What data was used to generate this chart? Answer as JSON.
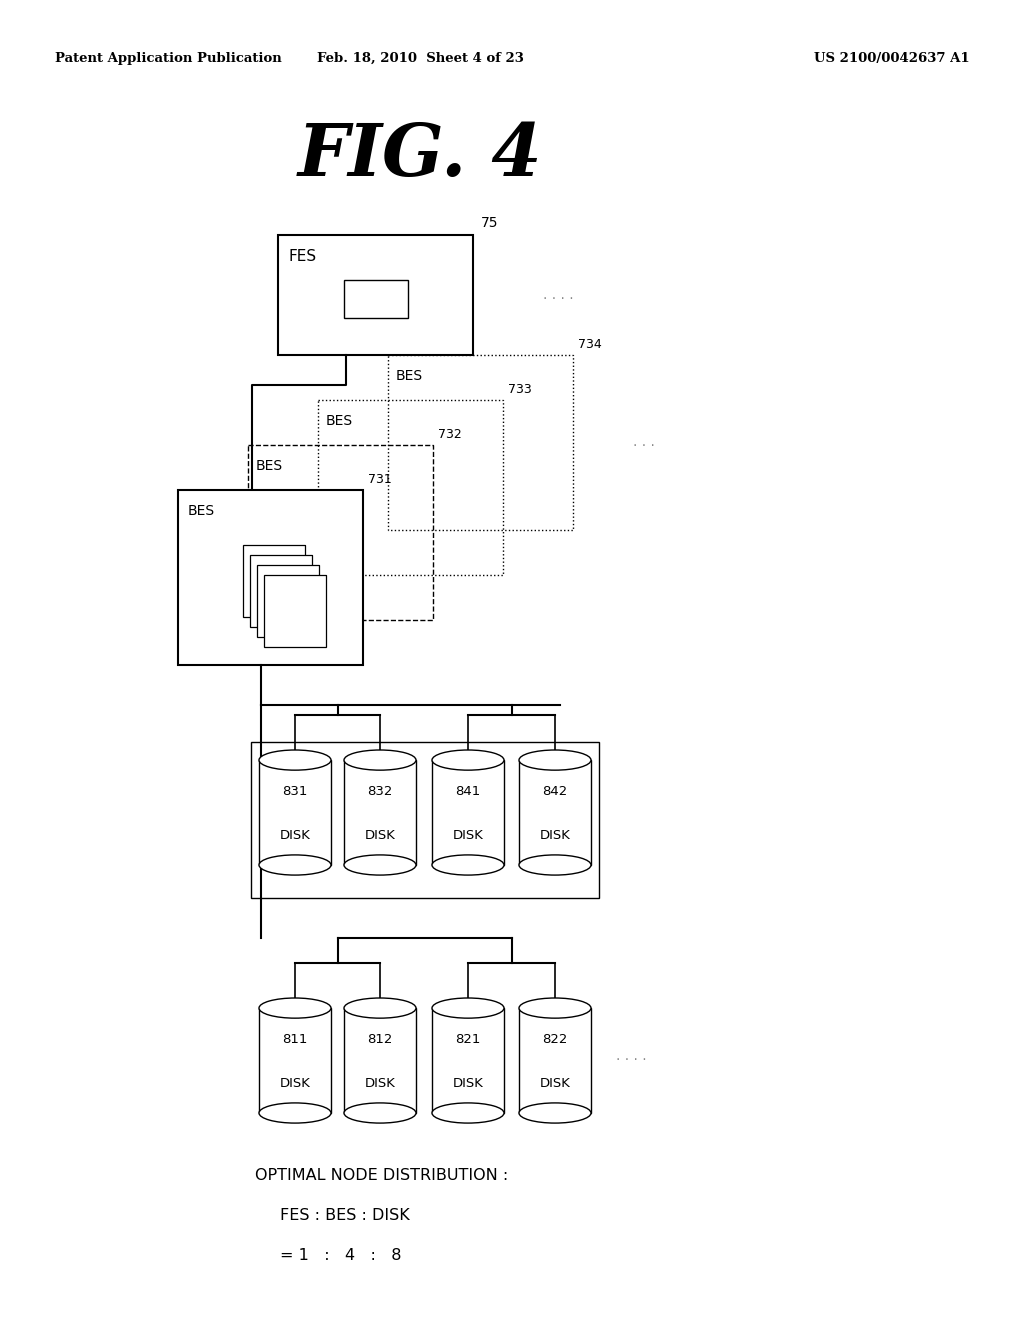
{
  "bg_color": "#ffffff",
  "header_left": "Patent Application Publication",
  "header_mid": "Feb. 18, 2010  Sheet 4 of 23",
  "header_right": "US 2100/0042637 A1",
  "title": "FIG. 4",
  "fes_label": "FES",
  "fes_number": "75",
  "footer_line1": "OPTIMAL NODE DISTRIBUTION :",
  "footer_line2": "FES : BES : DISK",
  "footer_line3": "= 1   :   4   :   8"
}
